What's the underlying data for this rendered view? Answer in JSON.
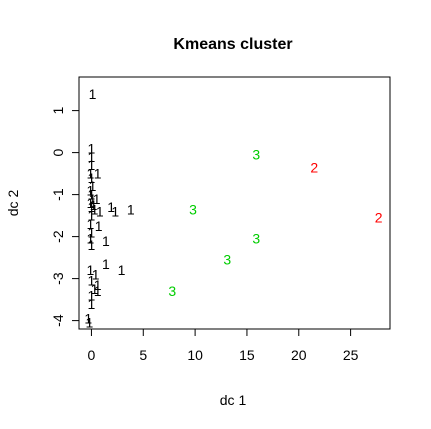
{
  "chart_data": {
    "type": "scatter",
    "title": "Kmeans cluster",
    "xlabel": "dc 1",
    "ylabel": "dc 2",
    "xlim": [
      -1.2,
      28.8
    ],
    "ylim": [
      -4.2,
      1.8
    ],
    "x_ticks": [
      0,
      5,
      10,
      15,
      20,
      25
    ],
    "y_ticks": [
      -4,
      -3,
      -2,
      -1,
      0,
      1
    ],
    "grid": false,
    "legend": "none",
    "marker": "cluster number as text",
    "cluster_colors": {
      "1": "#000000",
      "2": "#ff0000",
      "3": "#00cd00"
    },
    "points": [
      {
        "x": 0.1,
        "y": 1.4,
        "cluster": "1"
      },
      {
        "x": 0.0,
        "y": 0.1,
        "cluster": "1"
      },
      {
        "x": 0.0,
        "y": -0.1,
        "cluster": "1"
      },
      {
        "x": 0.0,
        "y": -0.3,
        "cluster": "1"
      },
      {
        "x": -0.1,
        "y": -0.5,
        "cluster": "1"
      },
      {
        "x": 0.0,
        "y": -0.6,
        "cluster": "1"
      },
      {
        "x": 0.1,
        "y": -0.8,
        "cluster": "1"
      },
      {
        "x": -0.1,
        "y": -0.9,
        "cluster": "1"
      },
      {
        "x": 0.0,
        "y": -1.0,
        "cluster": "1"
      },
      {
        "x": 0.1,
        "y": -1.1,
        "cluster": "1"
      },
      {
        "x": -0.1,
        "y": -1.2,
        "cluster": "1"
      },
      {
        "x": 0.2,
        "y": -1.25,
        "cluster": "1"
      },
      {
        "x": 0.0,
        "y": -1.3,
        "cluster": "1"
      },
      {
        "x": 0.3,
        "y": -1.35,
        "cluster": "1"
      },
      {
        "x": 0.0,
        "y": -1.5,
        "cluster": "1"
      },
      {
        "x": -0.1,
        "y": -1.7,
        "cluster": "1"
      },
      {
        "x": 0.0,
        "y": -1.9,
        "cluster": "1"
      },
      {
        "x": -0.1,
        "y": -2.05,
        "cluster": "1"
      },
      {
        "x": 0.0,
        "y": -2.2,
        "cluster": "1"
      },
      {
        "x": 0.6,
        "y": -0.5,
        "cluster": "1"
      },
      {
        "x": 0.5,
        "y": -1.1,
        "cluster": "1"
      },
      {
        "x": 0.8,
        "y": -1.4,
        "cluster": "1"
      },
      {
        "x": 0.7,
        "y": -1.75,
        "cluster": "1"
      },
      {
        "x": 1.9,
        "y": -1.3,
        "cluster": "1"
      },
      {
        "x": 2.3,
        "y": -1.4,
        "cluster": "1"
      },
      {
        "x": 3.8,
        "y": -1.35,
        "cluster": "1"
      },
      {
        "x": 1.4,
        "y": -2.1,
        "cluster": "1"
      },
      {
        "x": 1.4,
        "y": -2.65,
        "cluster": "1"
      },
      {
        "x": 2.9,
        "y": -2.8,
        "cluster": "1"
      },
      {
        "x": -0.1,
        "y": -2.8,
        "cluster": "1"
      },
      {
        "x": 0.4,
        "y": -2.9,
        "cluster": "1"
      },
      {
        "x": 0.0,
        "y": -3.05,
        "cluster": "1"
      },
      {
        "x": 0.6,
        "y": -3.15,
        "cluster": "1"
      },
      {
        "x": 0.3,
        "y": -3.25,
        "cluster": "1"
      },
      {
        "x": 0.6,
        "y": -3.3,
        "cluster": "1"
      },
      {
        "x": 0.0,
        "y": -3.4,
        "cluster": "1"
      },
      {
        "x": 0.0,
        "y": -3.6,
        "cluster": "1"
      },
      {
        "x": -0.3,
        "y": -3.95,
        "cluster": "1"
      },
      {
        "x": -0.2,
        "y": -4.05,
        "cluster": "1"
      },
      {
        "x": 15.9,
        "y": -0.05,
        "cluster": "3"
      },
      {
        "x": 9.8,
        "y": -1.35,
        "cluster": "3"
      },
      {
        "x": 15.9,
        "y": -2.05,
        "cluster": "3"
      },
      {
        "x": 13.1,
        "y": -2.55,
        "cluster": "3"
      },
      {
        "x": 7.8,
        "y": -3.3,
        "cluster": "3"
      },
      {
        "x": 21.5,
        "y": -0.35,
        "cluster": "2"
      },
      {
        "x": 27.7,
        "y": -1.55,
        "cluster": "2"
      }
    ]
  }
}
